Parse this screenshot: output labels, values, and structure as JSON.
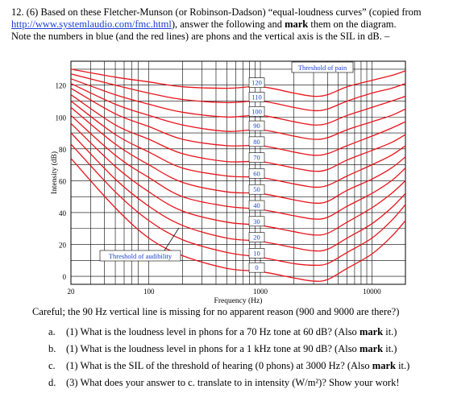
{
  "question": {
    "prefix": "12. (6) Based on these Fletcher-Munson (or Robinson-Dadson) “equal-loudness curves” (copied from",
    "link": "http://www.systemlaudio.com/fmc.html",
    "after_link_pre": "), answer the following and ",
    "after_link_bold": "mark",
    "after_link_post": " them on the diagram.",
    "line3": "Note the numbers in blue (and the red lines) are phons and the vertical axis is the SIL in dB. –"
  },
  "chart_data": {
    "type": "line",
    "xlabel": "Frequency (Hz)",
    "ylabel": "Intensity (dB)",
    "x_scale": "log",
    "xlim": [
      20,
      20000
    ],
    "ylim": [
      -5,
      135
    ],
    "x_ticks": [
      "20",
      "100",
      "1000",
      "10000"
    ],
    "y_ticks": [
      "0",
      "20",
      "40",
      "60",
      "80",
      "100",
      "120"
    ],
    "grid": true,
    "curve_color": "#e8141b",
    "annotations": [
      "Threshold of pain",
      "Threshold of audibility"
    ],
    "phon_labels": [
      "120",
      "110",
      "100",
      "90",
      "80",
      "70",
      "60",
      "50",
      "40",
      "30",
      "20",
      "10",
      "0"
    ],
    "series": [
      {
        "phon": 0,
        "x": [
          20,
          50,
          100,
          200,
          500,
          1000,
          2000,
          3000,
          4000,
          6000,
          10000,
          15000,
          20000
        ],
        "y": [
          74,
          43,
          24,
          13,
          5,
          3,
          -1,
          -3,
          -2,
          5,
          14,
          25,
          35
        ]
      },
      {
        "phon": 10,
        "x": [
          20,
          50,
          100,
          200,
          500,
          1000,
          2000,
          3000,
          4000,
          6000,
          10000,
          15000,
          20000
        ],
        "y": [
          83,
          53,
          35,
          23,
          15,
          12,
          8,
          7,
          8,
          15,
          24,
          35,
          45
        ]
      },
      {
        "phon": 20,
        "x": [
          20,
          50,
          100,
          200,
          500,
          1000,
          2000,
          3000,
          4000,
          6000,
          10000,
          15000,
          20000
        ],
        "y": [
          90,
          61,
          44,
          32,
          24,
          22,
          18,
          16,
          17,
          24,
          33,
          43,
          52
        ]
      },
      {
        "phon": 30,
        "x": [
          20,
          50,
          100,
          200,
          500,
          1000,
          2000,
          3000,
          4000,
          6000,
          10000,
          15000,
          20000
        ],
        "y": [
          96,
          69,
          53,
          41,
          34,
          32,
          28,
          26,
          27,
          34,
          43,
          52,
          60
        ]
      },
      {
        "phon": 40,
        "x": [
          20,
          50,
          100,
          200,
          500,
          1000,
          2000,
          3000,
          4000,
          6000,
          10000,
          15000,
          20000
        ],
        "y": [
          101,
          76,
          62,
          50,
          44,
          42,
          38,
          36,
          37,
          44,
          52,
          60,
          68
        ]
      },
      {
        "phon": 50,
        "x": [
          20,
          50,
          100,
          200,
          500,
          1000,
          2000,
          3000,
          4000,
          6000,
          10000,
          15000,
          20000
        ],
        "y": [
          106,
          83,
          70,
          59,
          53,
          52,
          48,
          46,
          47,
          54,
          61,
          68,
          75
        ]
      },
      {
        "phon": 60,
        "x": [
          20,
          50,
          100,
          200,
          500,
          1000,
          2000,
          3000,
          4000,
          6000,
          10000,
          15000,
          20000
        ],
        "y": [
          110,
          89,
          78,
          68,
          63,
          62,
          58,
          56,
          57,
          63,
          70,
          76,
          82
        ]
      },
      {
        "phon": 70,
        "x": [
          20,
          50,
          100,
          200,
          500,
          1000,
          2000,
          3000,
          4000,
          6000,
          10000,
          15000,
          20000
        ],
        "y": [
          114,
          95,
          86,
          77,
          72,
          72,
          68,
          66,
          67,
          73,
          79,
          84,
          89
        ]
      },
      {
        "phon": 80,
        "x": [
          20,
          50,
          100,
          200,
          500,
          1000,
          2000,
          3000,
          4000,
          6000,
          10000,
          15000,
          20000
        ],
        "y": [
          118,
          102,
          94,
          86,
          82,
          82,
          78,
          76,
          77,
          82,
          88,
          93,
          97
        ]
      },
      {
        "phon": 90,
        "x": [
          20,
          50,
          100,
          200,
          500,
          1000,
          2000,
          3000,
          4000,
          6000,
          10000,
          15000,
          20000
        ],
        "y": [
          121,
          108,
          101,
          95,
          91,
          92,
          88,
          86,
          87,
          92,
          97,
          101,
          105
        ]
      },
      {
        "phon": 100,
        "x": [
          20,
          50,
          100,
          200,
          500,
          1000,
          2000,
          3000,
          4000,
          6000,
          10000,
          15000,
          20000
        ],
        "y": [
          124,
          114,
          108,
          103,
          100,
          101,
          97,
          95,
          96,
          101,
          106,
          110,
          113
        ]
      },
      {
        "phon": 110,
        "x": [
          20,
          50,
          100,
          200,
          500,
          1000,
          2000,
          3000,
          4000,
          6000,
          10000,
          15000,
          20000
        ],
        "y": [
          127,
          120,
          115,
          111,
          109,
          110,
          106,
          104,
          105,
          110,
          115,
          118,
          121
        ]
      },
      {
        "phon": 120,
        "x": [
          20,
          50,
          100,
          200,
          500,
          1000,
          2000,
          3000,
          4000,
          6000,
          10000,
          15000,
          20000
        ],
        "y": [
          130,
          125,
          122,
          119,
          118,
          119,
          115,
          113,
          114,
          119,
          123,
          126,
          129
        ]
      }
    ]
  },
  "careful": "Careful; the 90 Hz vertical line is missing for no apparent reason (900 and 9000 are there?)",
  "items": [
    {
      "label": "a.",
      "pre": "(1) What is the loudness level in phons for a 70 Hz tone at 60 dB? (Also ",
      "bold": "mark",
      "post": " it.)"
    },
    {
      "label": "b.",
      "pre": "(1) What is the loudness level in phons for a 1 kHz tone at 90 dB? (Also ",
      "bold": "mark",
      "post": " it.)"
    },
    {
      "label": "c.",
      "pre": "(1) What is the SIL of the threshold of hearing (0 phons) at 3000 Hz? (Also ",
      "bold": "mark",
      "post": " it.)"
    },
    {
      "label": "d.",
      "pre": "(3) What does your answer to c. translate to in intensity (W/m²)? Show your work!",
      "bold": "",
      "post": ""
    }
  ]
}
